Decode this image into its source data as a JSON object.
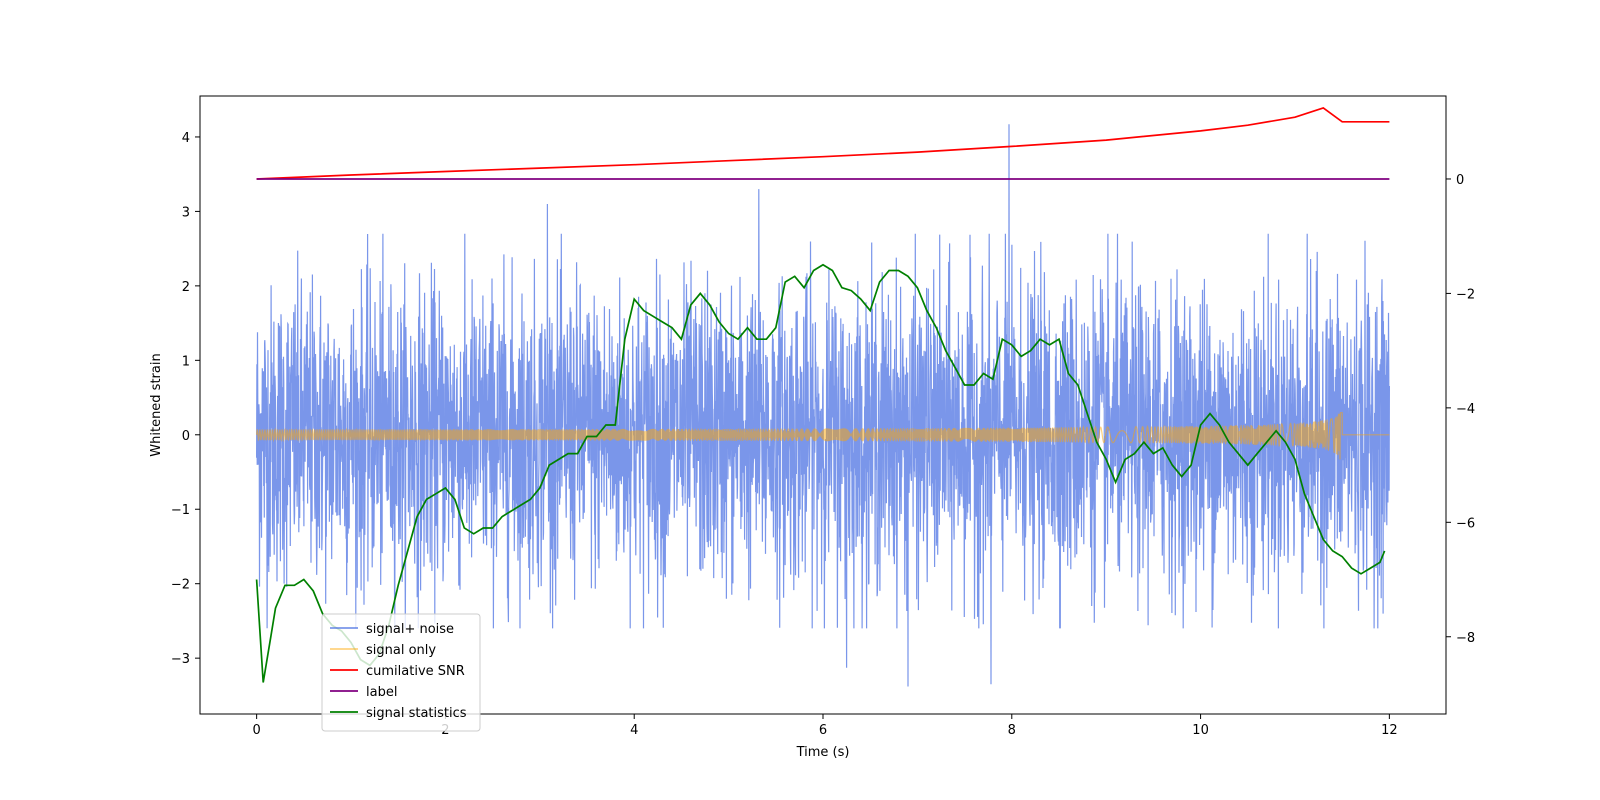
{
  "chart_data": {
    "type": "line",
    "title": "",
    "xlabel": "Time (s)",
    "ylabel": "Whitened strain",
    "y2label": "",
    "xlim": [
      -0.6,
      12.6
    ],
    "ylim": [
      -3.75,
      4.55
    ],
    "y2lim": [
      -9.35,
      1.45
    ],
    "xticks": [
      0,
      2,
      4,
      6,
      8,
      10,
      12
    ],
    "yticks": [
      -3,
      -2,
      -1,
      0,
      1,
      2,
      3,
      4
    ],
    "y2ticks": [
      -8,
      -6,
      -4,
      -2,
      0
    ],
    "legend_position": "lower-left",
    "series": [
      {
        "name": "signal+ noise",
        "color": "#4169e1",
        "axis": "left",
        "kind": "noise",
        "t_start": 0,
        "t_end": 12,
        "typical_range": [
          -1.8,
          1.8
        ],
        "peaks": [
          {
            "x": 7.97,
            "y": 4.17
          },
          {
            "x": 5.32,
            "y": 3.3
          },
          {
            "x": 3.08,
            "y": 3.1
          },
          {
            "x": 6.9,
            "y": -3.38
          },
          {
            "x": 7.78,
            "y": -3.35
          },
          {
            "x": 6.25,
            "y": -3.13
          }
        ]
      },
      {
        "name": "signal only",
        "color": "#ffa500",
        "axis": "left",
        "kind": "chirp",
        "t_start": 0,
        "t_end": 11.5,
        "max_amplitude": 0.35
      },
      {
        "name": "cumilative SNR",
        "color": "#ff0000",
        "axis": "right",
        "x": [
          0,
          1,
          2,
          3,
          4,
          5,
          6,
          7,
          8,
          9,
          10,
          10.5,
          11,
          11.3,
          11.5,
          12
        ],
        "y": [
          0.0,
          0.07,
          0.13,
          0.19,
          0.25,
          0.32,
          0.39,
          0.47,
          0.57,
          0.68,
          0.84,
          0.94,
          1.08,
          1.24,
          1.0,
          1.0
        ]
      },
      {
        "name": "label",
        "color": "#800080",
        "axis": "right",
        "x": [
          0,
          12
        ],
        "y": [
          0,
          0
        ]
      },
      {
        "name": "signal statistics",
        "color": "#008000",
        "axis": "right",
        "x": [
          0,
          0.07,
          0.15,
          0.2,
          0.3,
          0.4,
          0.5,
          0.6,
          0.7,
          0.8,
          0.9,
          1.0,
          1.1,
          1.2,
          1.3,
          1.4,
          1.5,
          1.6,
          1.7,
          1.8,
          1.9,
          2.0,
          2.1,
          2.2,
          2.3,
          2.4,
          2.5,
          2.6,
          2.7,
          2.8,
          2.9,
          3.0,
          3.1,
          3.2,
          3.3,
          3.4,
          3.5,
          3.6,
          3.7,
          3.8,
          3.9,
          4.0,
          4.1,
          4.2,
          4.3,
          4.4,
          4.5,
          4.6,
          4.7,
          4.8,
          4.9,
          5.0,
          5.1,
          5.2,
          5.3,
          5.4,
          5.5,
          5.6,
          5.7,
          5.8,
          5.9,
          6.0,
          6.1,
          6.2,
          6.3,
          6.4,
          6.5,
          6.6,
          6.7,
          6.8,
          6.9,
          7.0,
          7.1,
          7.2,
          7.3,
          7.4,
          7.5,
          7.6,
          7.7,
          7.8,
          7.9,
          8.0,
          8.1,
          8.2,
          8.3,
          8.4,
          8.5,
          8.6,
          8.7,
          8.8,
          8.9,
          9.0,
          9.1,
          9.2,
          9.3,
          9.4,
          9.5,
          9.6,
          9.7,
          9.8,
          9.9,
          10.0,
          10.1,
          10.2,
          10.3,
          10.4,
          10.5,
          10.6,
          10.7,
          10.8,
          10.9,
          11.0,
          11.1,
          11.2,
          11.3,
          11.4,
          11.5,
          11.6,
          11.7,
          11.8,
          11.9,
          11.95
        ],
        "y": [
          -7.0,
          -8.8,
          -8.0,
          -7.5,
          -7.1,
          -7.1,
          -7.0,
          -7.2,
          -7.6,
          -7.8,
          -7.9,
          -8.1,
          -8.4,
          -8.5,
          -8.3,
          -7.8,
          -7.1,
          -6.5,
          -5.9,
          -5.6,
          -5.5,
          -5.4,
          -5.6,
          -6.1,
          -6.2,
          -6.1,
          -6.1,
          -5.9,
          -5.8,
          -5.7,
          -5.6,
          -5.4,
          -5.0,
          -4.9,
          -4.8,
          -4.8,
          -4.5,
          -4.5,
          -4.3,
          -4.3,
          -2.8,
          -2.1,
          -2.3,
          -2.4,
          -2.5,
          -2.6,
          -2.8,
          -2.2,
          -2.0,
          -2.2,
          -2.5,
          -2.7,
          -2.8,
          -2.6,
          -2.8,
          -2.8,
          -2.6,
          -1.8,
          -1.7,
          -1.9,
          -1.6,
          -1.5,
          -1.6,
          -1.9,
          -1.95,
          -2.1,
          -2.3,
          -1.8,
          -1.6,
          -1.6,
          -1.7,
          -1.9,
          -2.3,
          -2.6,
          -3.0,
          -3.3,
          -3.6,
          -3.6,
          -3.4,
          -3.5,
          -2.8,
          -2.9,
          -3.1,
          -3.0,
          -2.8,
          -2.9,
          -2.8,
          -3.4,
          -3.6,
          -4.1,
          -4.6,
          -4.9,
          -5.3,
          -4.9,
          -4.8,
          -4.6,
          -4.8,
          -4.7,
          -5.0,
          -5.2,
          -5.0,
          -4.3,
          -4.1,
          -4.3,
          -4.6,
          -4.8,
          -5.0,
          -4.8,
          -4.6,
          -4.4,
          -4.6,
          -4.9,
          -5.5,
          -5.9,
          -6.3,
          -6.5,
          -6.6,
          -6.8,
          -6.9,
          -6.8,
          -6.7,
          -6.5
        ]
      }
    ]
  }
}
